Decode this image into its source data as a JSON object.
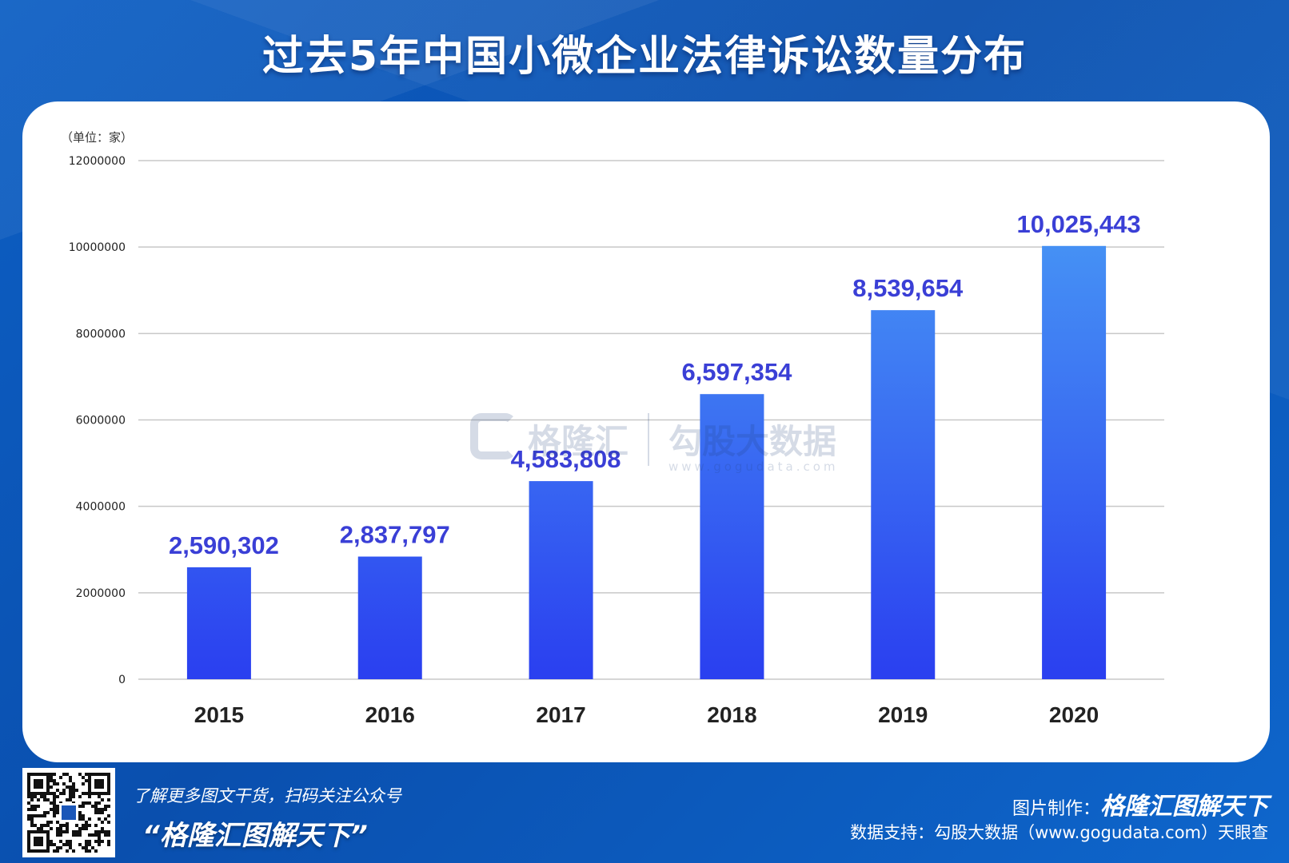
{
  "title": "过去5年中国小微企业法律诉讼数量分布",
  "chart_data": {
    "type": "bar",
    "unit_label": "（单位：家）",
    "categories": [
      "2015",
      "2016",
      "2017",
      "2018",
      "2019",
      "2020"
    ],
    "values": [
      2590302,
      2837797,
      4583808,
      6597354,
      8539654,
      10025443
    ],
    "value_labels": [
      "2,590,302",
      "2,837,797",
      "4,583,808",
      "6,597,354",
      "8,539,654",
      "10,025,443"
    ],
    "y_ticks": [
      "0",
      "2000000",
      "4000000",
      "6000000",
      "8000000",
      "10000000",
      "12000000"
    ],
    "ylim": [
      0,
      12000000
    ],
    "grid": true,
    "bar_color_top": "#4aa0f5",
    "bar_color_bottom": "#2a3ff0",
    "label_color": "#3a3fd6"
  },
  "watermark": {
    "brand": "格隆汇",
    "brand2": "勾股大数据",
    "url": "www.gogudata.com"
  },
  "footer": {
    "tagline": "了解更多图文干货，扫码关注公众号",
    "slogan": "“格隆汇图解天下”",
    "maker_label": "图片制作：",
    "maker_brand": "格隆汇图解天下",
    "source": "数据支持：勾股大数据（www.gogudata.com）天眼查"
  },
  "colors": {
    "background": "#0d5fc4",
    "card": "#ffffff",
    "gridline": "#c8c8c8"
  }
}
